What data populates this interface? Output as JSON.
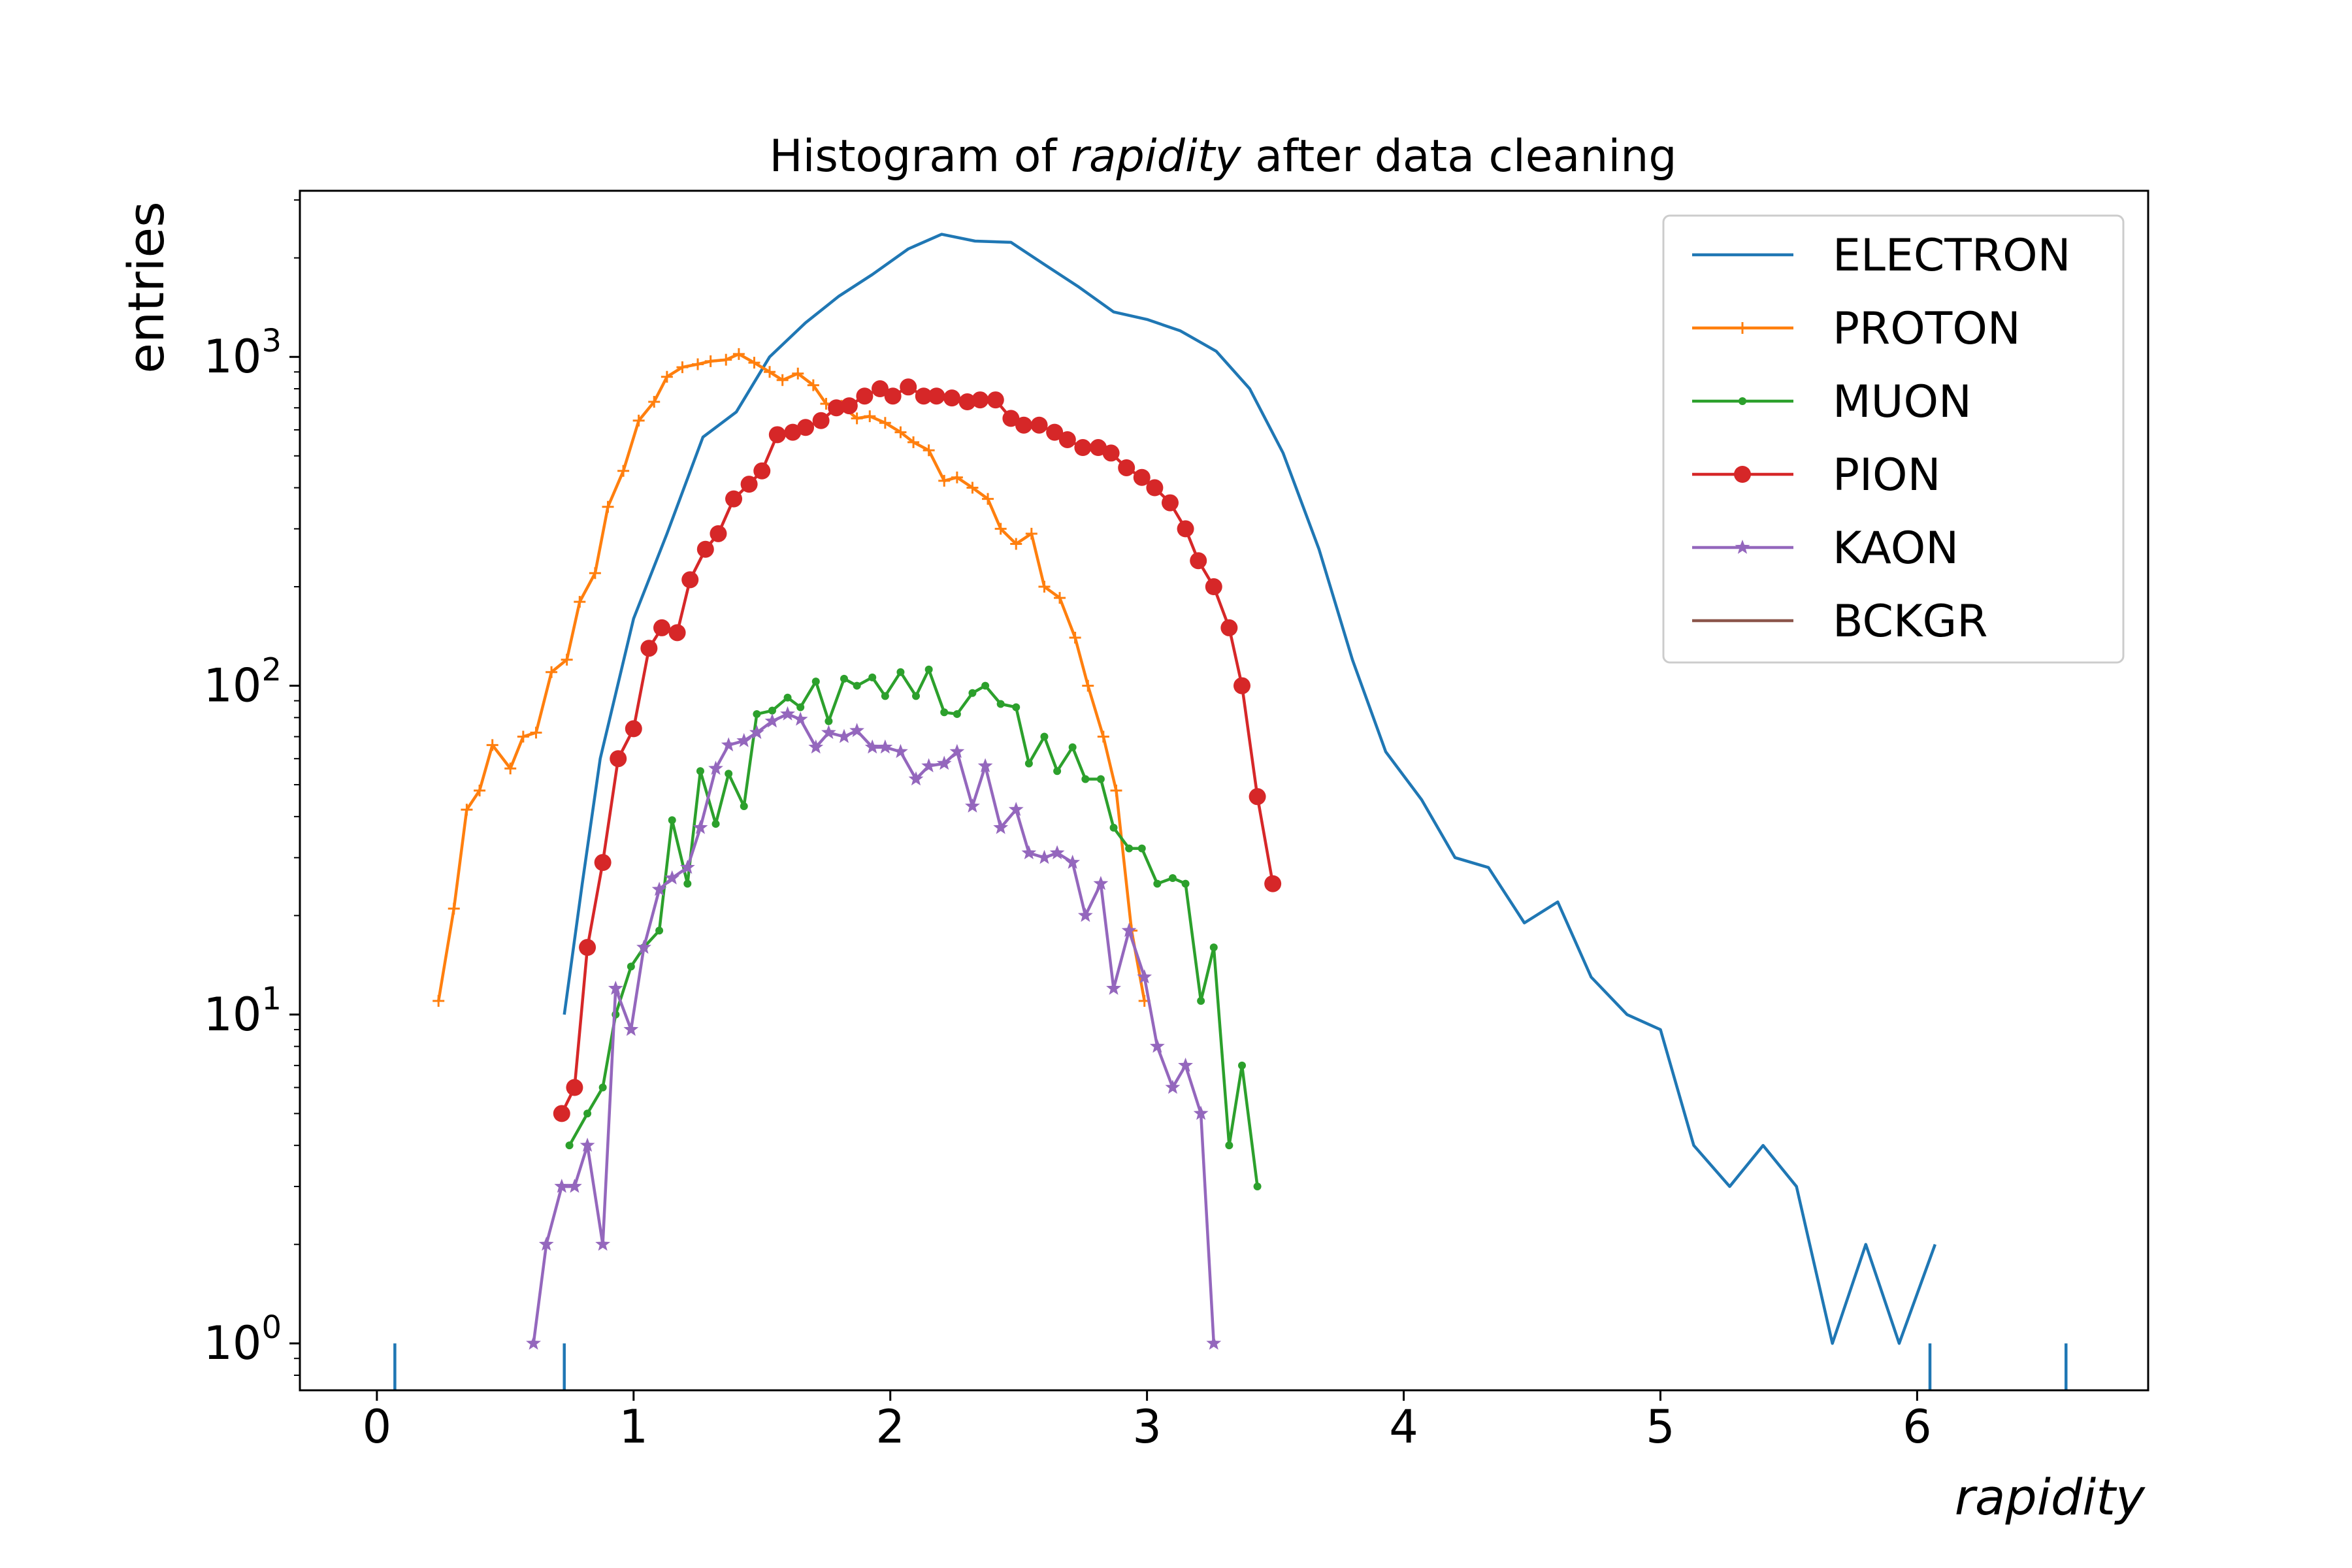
{
  "chart_data": {
    "type": "line",
    "title_prefix": "Histogram of ",
    "title_italic": "rapidity",
    "title_suffix": " after data cleaning",
    "xlabel": "rapidity",
    "ylabel": "entries",
    "xlim": [
      -0.3,
      6.9
    ],
    "ylim": [
      0.72,
      3200
    ],
    "y_scale": "log",
    "x_ticks": [
      0,
      1,
      2,
      3,
      4,
      5,
      6
    ],
    "x_tick_labels": [
      "0",
      "1",
      "2",
      "3",
      "4",
      "5",
      "6"
    ],
    "y_ticks": [
      1,
      10,
      100,
      1000
    ],
    "y_tick_labels": [
      {
        "base": "10",
        "exp": "0"
      },
      {
        "base": "10",
        "exp": "1"
      },
      {
        "base": "10",
        "exp": "2"
      },
      {
        "base": "10",
        "exp": "3"
      }
    ],
    "grid": false,
    "legend_position": "top-right",
    "series": [
      {
        "name": "ELECTRON",
        "color": "#1f77b4",
        "marker": "none",
        "points": [
          [
            0.73,
            10
          ],
          [
            0.8,
            25
          ],
          [
            0.87,
            60
          ],
          [
            1.0,
            160
          ],
          [
            1.13,
            290
          ],
          [
            1.27,
            570
          ],
          [
            1.4,
            680
          ],
          [
            1.53,
            1000
          ],
          [
            1.67,
            1270
          ],
          [
            1.8,
            1530
          ],
          [
            1.93,
            1780
          ],
          [
            2.07,
            2130
          ],
          [
            2.2,
            2360
          ],
          [
            2.33,
            2250
          ],
          [
            2.47,
            2230
          ],
          [
            2.6,
            1910
          ],
          [
            2.73,
            1640
          ],
          [
            2.87,
            1370
          ],
          [
            3.0,
            1300
          ],
          [
            3.13,
            1200
          ],
          [
            3.27,
            1040
          ],
          [
            3.4,
            800
          ],
          [
            3.53,
            510
          ],
          [
            3.67,
            260
          ],
          [
            3.8,
            120
          ],
          [
            3.93,
            63
          ],
          [
            4.07,
            45
          ],
          [
            4.2,
            30
          ],
          [
            4.33,
            28
          ],
          [
            4.47,
            19
          ],
          [
            4.6,
            22
          ],
          [
            4.73,
            13
          ],
          [
            4.87,
            10
          ],
          [
            5.0,
            9
          ],
          [
            5.13,
            4
          ],
          [
            5.27,
            3
          ],
          [
            5.4,
            4
          ],
          [
            5.53,
            3
          ],
          [
            5.67,
            1
          ],
          [
            5.8,
            2
          ],
          [
            5.93,
            1
          ],
          [
            6.07,
            2
          ]
        ],
        "spikes": [
          0.07,
          0.73,
          6.05,
          6.58
        ]
      },
      {
        "name": "PROTON",
        "color": "#ff7f0e",
        "marker": "plus",
        "points": [
          [
            0.24,
            11
          ],
          [
            0.3,
            21
          ],
          [
            0.35,
            42
          ],
          [
            0.4,
            48
          ],
          [
            0.45,
            66
          ],
          [
            0.52,
            56
          ],
          [
            0.57,
            70
          ],
          [
            0.62,
            72
          ],
          [
            0.68,
            110
          ],
          [
            0.74,
            120
          ],
          [
            0.79,
            180
          ],
          [
            0.85,
            220
          ],
          [
            0.9,
            350
          ],
          [
            0.96,
            450
          ],
          [
            1.02,
            640
          ],
          [
            1.08,
            730
          ],
          [
            1.13,
            870
          ],
          [
            1.19,
            930
          ],
          [
            1.25,
            950
          ],
          [
            1.3,
            970
          ],
          [
            1.36,
            980
          ],
          [
            1.41,
            1020
          ],
          [
            1.47,
            960
          ],
          [
            1.53,
            900
          ],
          [
            1.58,
            850
          ],
          [
            1.64,
            890
          ],
          [
            1.7,
            820
          ],
          [
            1.75,
            720
          ],
          [
            1.81,
            710
          ],
          [
            1.87,
            650
          ],
          [
            1.92,
            660
          ],
          [
            1.98,
            630
          ],
          [
            2.04,
            590
          ],
          [
            2.09,
            550
          ],
          [
            2.15,
            520
          ],
          [
            2.21,
            420
          ],
          [
            2.26,
            430
          ],
          [
            2.32,
            400
          ],
          [
            2.38,
            370
          ],
          [
            2.43,
            300
          ],
          [
            2.49,
            270
          ],
          [
            2.55,
            290
          ],
          [
            2.6,
            200
          ],
          [
            2.66,
            185
          ],
          [
            2.72,
            140
          ],
          [
            2.77,
            100
          ],
          [
            2.83,
            70
          ],
          [
            2.88,
            48
          ],
          [
            2.94,
            18
          ],
          [
            2.99,
            11
          ]
        ]
      },
      {
        "name": "MUON",
        "color": "#2ca02c",
        "marker": "dot",
        "points": [
          [
            0.75,
            4
          ],
          [
            0.82,
            5
          ],
          [
            0.88,
            6
          ],
          [
            0.93,
            10
          ],
          [
            0.99,
            14
          ],
          [
            1.04,
            16
          ],
          [
            1.1,
            18
          ],
          [
            1.15,
            39
          ],
          [
            1.21,
            25
          ],
          [
            1.26,
            55
          ],
          [
            1.32,
            38
          ],
          [
            1.37,
            54
          ],
          [
            1.43,
            43
          ],
          [
            1.48,
            82
          ],
          [
            1.54,
            84
          ],
          [
            1.6,
            92
          ],
          [
            1.65,
            86
          ],
          [
            1.71,
            103
          ],
          [
            1.76,
            78
          ],
          [
            1.82,
            105
          ],
          [
            1.87,
            100
          ],
          [
            1.93,
            106
          ],
          [
            1.98,
            93
          ],
          [
            2.04,
            110
          ],
          [
            2.1,
            93
          ],
          [
            2.15,
            112
          ],
          [
            2.21,
            83
          ],
          [
            2.26,
            82
          ],
          [
            2.32,
            95
          ],
          [
            2.37,
            100
          ],
          [
            2.43,
            88
          ],
          [
            2.49,
            86
          ],
          [
            2.54,
            58
          ],
          [
            2.6,
            70
          ],
          [
            2.65,
            55
          ],
          [
            2.71,
            65
          ],
          [
            2.76,
            52
          ],
          [
            2.82,
            52
          ],
          [
            2.87,
            37
          ],
          [
            2.93,
            32
          ],
          [
            2.98,
            32
          ],
          [
            3.04,
            25
          ],
          [
            3.1,
            26
          ],
          [
            3.15,
            25
          ],
          [
            3.21,
            11
          ],
          [
            3.26,
            16
          ],
          [
            3.32,
            4
          ],
          [
            3.37,
            7
          ],
          [
            3.43,
            3
          ]
        ]
      },
      {
        "name": "PION",
        "color": "#d62728",
        "marker": "circle",
        "points": [
          [
            0.72,
            5
          ],
          [
            0.77,
            6
          ],
          [
            0.82,
            16
          ],
          [
            0.88,
            29
          ],
          [
            0.94,
            60
          ],
          [
            1.0,
            74
          ],
          [
            1.06,
            130
          ],
          [
            1.11,
            150
          ],
          [
            1.17,
            145
          ],
          [
            1.22,
            210
          ],
          [
            1.28,
            260
          ],
          [
            1.33,
            290
          ],
          [
            1.39,
            370
          ],
          [
            1.45,
            410
          ],
          [
            1.5,
            450
          ],
          [
            1.56,
            580
          ],
          [
            1.62,
            590
          ],
          [
            1.67,
            610
          ],
          [
            1.73,
            640
          ],
          [
            1.79,
            700
          ],
          [
            1.84,
            710
          ],
          [
            1.9,
            760
          ],
          [
            1.96,
            800
          ],
          [
            2.01,
            760
          ],
          [
            2.07,
            810
          ],
          [
            2.13,
            760
          ],
          [
            2.18,
            760
          ],
          [
            2.24,
            750
          ],
          [
            2.3,
            730
          ],
          [
            2.35,
            740
          ],
          [
            2.41,
            740
          ],
          [
            2.47,
            650
          ],
          [
            2.52,
            620
          ],
          [
            2.58,
            620
          ],
          [
            2.64,
            590
          ],
          [
            2.69,
            560
          ],
          [
            2.75,
            530
          ],
          [
            2.81,
            530
          ],
          [
            2.86,
            510
          ],
          [
            2.92,
            460
          ],
          [
            2.98,
            430
          ],
          [
            3.03,
            400
          ],
          [
            3.09,
            360
          ],
          [
            3.15,
            300
          ],
          [
            3.2,
            240
          ],
          [
            3.26,
            200
          ],
          [
            3.32,
            150
          ],
          [
            3.37,
            100
          ],
          [
            3.43,
            46
          ],
          [
            3.49,
            25
          ]
        ]
      },
      {
        "name": "KAON",
        "color": "#9467bd",
        "marker": "star",
        "points": [
          [
            0.61,
            1
          ],
          [
            0.66,
            2
          ],
          [
            0.72,
            3
          ],
          [
            0.77,
            3
          ],
          [
            0.82,
            4
          ],
          [
            0.88,
            2
          ],
          [
            0.93,
            12
          ],
          [
            0.99,
            9
          ],
          [
            1.04,
            16
          ],
          [
            1.1,
            24
          ],
          [
            1.15,
            26
          ],
          [
            1.21,
            28
          ],
          [
            1.26,
            37
          ],
          [
            1.32,
            56
          ],
          [
            1.37,
            66
          ],
          [
            1.43,
            68
          ],
          [
            1.48,
            72
          ],
          [
            1.54,
            78
          ],
          [
            1.6,
            82
          ],
          [
            1.65,
            79
          ],
          [
            1.71,
            65
          ],
          [
            1.76,
            72
          ],
          [
            1.82,
            70
          ],
          [
            1.87,
            73
          ],
          [
            1.93,
            65
          ],
          [
            1.98,
            65
          ],
          [
            2.04,
            63
          ],
          [
            2.1,
            52
          ],
          [
            2.15,
            57
          ],
          [
            2.21,
            58
          ],
          [
            2.26,
            63
          ],
          [
            2.32,
            43
          ],
          [
            2.37,
            57
          ],
          [
            2.43,
            37
          ],
          [
            2.49,
            42
          ],
          [
            2.54,
            31
          ],
          [
            2.6,
            30
          ],
          [
            2.65,
            31
          ],
          [
            2.71,
            29
          ],
          [
            2.76,
            20
          ],
          [
            2.82,
            25
          ],
          [
            2.87,
            12
          ],
          [
            2.93,
            18
          ],
          [
            2.99,
            13
          ],
          [
            3.04,
            8
          ],
          [
            3.1,
            6
          ],
          [
            3.15,
            7
          ],
          [
            3.21,
            5
          ],
          [
            3.26,
            1
          ]
        ]
      },
      {
        "name": "BCKGR",
        "color": "#8c564b",
        "marker": "none",
        "points": []
      }
    ]
  }
}
